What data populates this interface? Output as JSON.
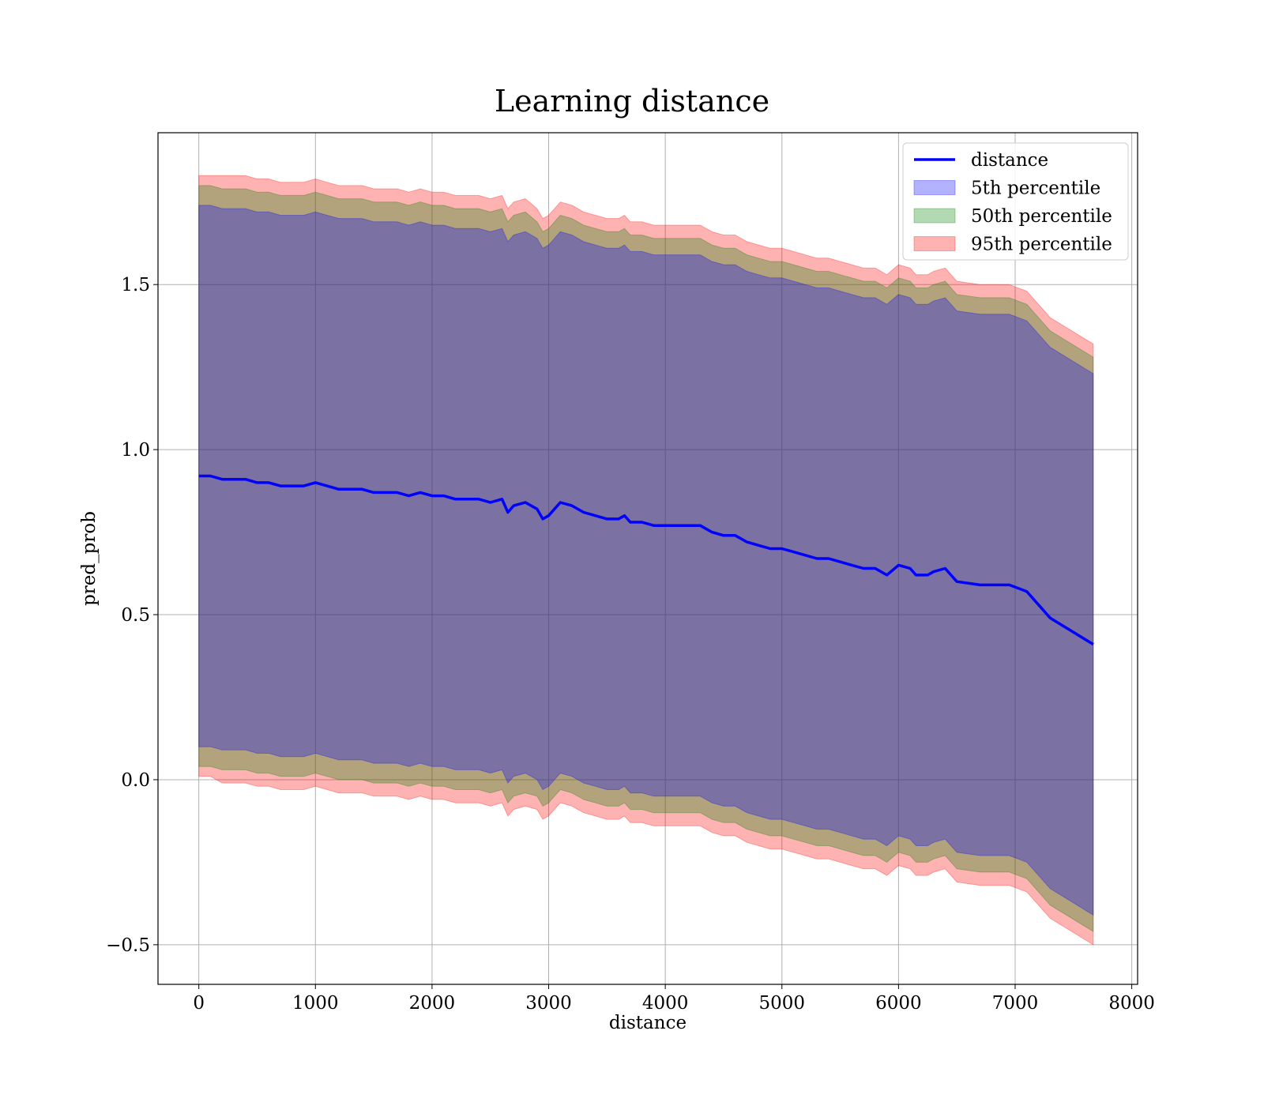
{
  "chart_data": {
    "type": "line",
    "title": "Learning distance",
    "xlabel": "distance",
    "ylabel": "pred_prob",
    "xlim": [
      -350,
      8050
    ],
    "ylim": [
      -0.62,
      1.96
    ],
    "xticks": [
      0,
      1000,
      2000,
      3000,
      4000,
      5000,
      6000,
      7000,
      8000
    ],
    "xtick_labels": [
      "0",
      "1000",
      "2000",
      "3000",
      "4000",
      "5000",
      "6000",
      "7000",
      "8000"
    ],
    "yticks": [
      -0.5,
      0.0,
      0.5,
      1.0,
      1.5
    ],
    "ytick_labels": [
      "−0.5",
      "0.0",
      "0.5",
      "1.0",
      "1.5"
    ],
    "grid": true,
    "legend": {
      "location": "upper right",
      "entries": [
        {
          "label": "distance",
          "kind": "line",
          "color": "#0000ff"
        },
        {
          "label": "5th percentile",
          "kind": "patch",
          "color": "#0000ff"
        },
        {
          "label": "50th percentile",
          "kind": "patch",
          "color": "#008000"
        },
        {
          "label": "95th percentile",
          "kind": "patch",
          "color": "#ff0000"
        }
      ]
    },
    "line": {
      "name": "distance",
      "color": "#0000ff",
      "x": [
        0,
        100,
        200,
        300,
        400,
        500,
        600,
        700,
        800,
        900,
        1000,
        1100,
        1200,
        1300,
        1400,
        1500,
        1600,
        1700,
        1800,
        1900,
        2000,
        2100,
        2200,
        2300,
        2400,
        2500,
        2600,
        2650,
        2700,
        2800,
        2900,
        2950,
        3000,
        3050,
        3100,
        3200,
        3300,
        3400,
        3500,
        3600,
        3650,
        3700,
        3800,
        3900,
        4000,
        4100,
        4200,
        4300,
        4400,
        4500,
        4600,
        4700,
        4800,
        4900,
        5000,
        5100,
        5200,
        5300,
        5400,
        5500,
        5600,
        5700,
        5800,
        5900,
        6000,
        6100,
        6150,
        6250,
        6300,
        6400,
        6500,
        6700,
        6950,
        7100,
        7300,
        7670
      ],
      "y": [
        0.92,
        0.92,
        0.91,
        0.91,
        0.91,
        0.9,
        0.9,
        0.89,
        0.89,
        0.89,
        0.9,
        0.89,
        0.88,
        0.88,
        0.88,
        0.87,
        0.87,
        0.87,
        0.86,
        0.87,
        0.86,
        0.86,
        0.85,
        0.85,
        0.85,
        0.84,
        0.85,
        0.81,
        0.83,
        0.84,
        0.82,
        0.79,
        0.8,
        0.82,
        0.84,
        0.83,
        0.81,
        0.8,
        0.79,
        0.79,
        0.8,
        0.78,
        0.78,
        0.77,
        0.77,
        0.77,
        0.77,
        0.77,
        0.75,
        0.74,
        0.74,
        0.72,
        0.71,
        0.7,
        0.7,
        0.69,
        0.68,
        0.67,
        0.67,
        0.66,
        0.65,
        0.64,
        0.64,
        0.62,
        0.65,
        0.64,
        0.62,
        0.62,
        0.63,
        0.64,
        0.6,
        0.59,
        0.59,
        0.57,
        0.49,
        0.41
      ]
    },
    "bands": [
      {
        "name": "95th percentile",
        "color": "#ff0000",
        "alpha": 0.3,
        "half_width": [
          0.91,
          0.91,
          0.92,
          0.92,
          0.92,
          0.92,
          0.92,
          0.92,
          0.92,
          0.92,
          0.92,
          0.92,
          0.92,
          0.92,
          0.92,
          0.92,
          0.92,
          0.92,
          0.92,
          0.92,
          0.92,
          0.92,
          0.92,
          0.92,
          0.92,
          0.92,
          0.92,
          0.92,
          0.92,
          0.92,
          0.91,
          0.91,
          0.91,
          0.91,
          0.91,
          0.91,
          0.91,
          0.91,
          0.91,
          0.91,
          0.91,
          0.91,
          0.91,
          0.91,
          0.91,
          0.91,
          0.91,
          0.91,
          0.91,
          0.91,
          0.91,
          0.91,
          0.91,
          0.91,
          0.91,
          0.91,
          0.91,
          0.91,
          0.91,
          0.91,
          0.91,
          0.91,
          0.91,
          0.91,
          0.91,
          0.91,
          0.91,
          0.91,
          0.91,
          0.91,
          0.91,
          0.91,
          0.91,
          0.91,
          0.91,
          0.91
        ]
      },
      {
        "name": "50th percentile",
        "color": "#008000",
        "alpha": 0.3,
        "half_width": [
          0.88,
          0.88,
          0.88,
          0.88,
          0.88,
          0.88,
          0.88,
          0.88,
          0.88,
          0.88,
          0.88,
          0.88,
          0.88,
          0.88,
          0.88,
          0.88,
          0.88,
          0.88,
          0.88,
          0.88,
          0.88,
          0.88,
          0.88,
          0.88,
          0.88,
          0.88,
          0.88,
          0.88,
          0.88,
          0.88,
          0.87,
          0.87,
          0.87,
          0.87,
          0.87,
          0.87,
          0.87,
          0.87,
          0.87,
          0.87,
          0.87,
          0.87,
          0.87,
          0.87,
          0.87,
          0.87,
          0.87,
          0.87,
          0.87,
          0.87,
          0.87,
          0.87,
          0.87,
          0.87,
          0.87,
          0.87,
          0.87,
          0.87,
          0.87,
          0.87,
          0.87,
          0.87,
          0.87,
          0.87,
          0.87,
          0.87,
          0.87,
          0.87,
          0.87,
          0.87,
          0.87,
          0.87,
          0.87,
          0.87,
          0.87,
          0.87
        ]
      },
      {
        "name": "5th percentile",
        "color": "#0000ff",
        "alpha": 0.3,
        "half_width": [
          0.82,
          0.82,
          0.82,
          0.82,
          0.82,
          0.82,
          0.82,
          0.82,
          0.82,
          0.82,
          0.82,
          0.82,
          0.82,
          0.82,
          0.82,
          0.82,
          0.82,
          0.82,
          0.82,
          0.82,
          0.82,
          0.82,
          0.82,
          0.82,
          0.82,
          0.82,
          0.82,
          0.82,
          0.82,
          0.82,
          0.82,
          0.82,
          0.82,
          0.82,
          0.82,
          0.82,
          0.82,
          0.82,
          0.82,
          0.82,
          0.82,
          0.82,
          0.82,
          0.82,
          0.82,
          0.82,
          0.82,
          0.82,
          0.82,
          0.82,
          0.82,
          0.82,
          0.82,
          0.82,
          0.82,
          0.82,
          0.82,
          0.82,
          0.82,
          0.82,
          0.82,
          0.82,
          0.82,
          0.82,
          0.82,
          0.82,
          0.82,
          0.82,
          0.82,
          0.82,
          0.82,
          0.82,
          0.82,
          0.82,
          0.82,
          0.82
        ]
      }
    ]
  }
}
